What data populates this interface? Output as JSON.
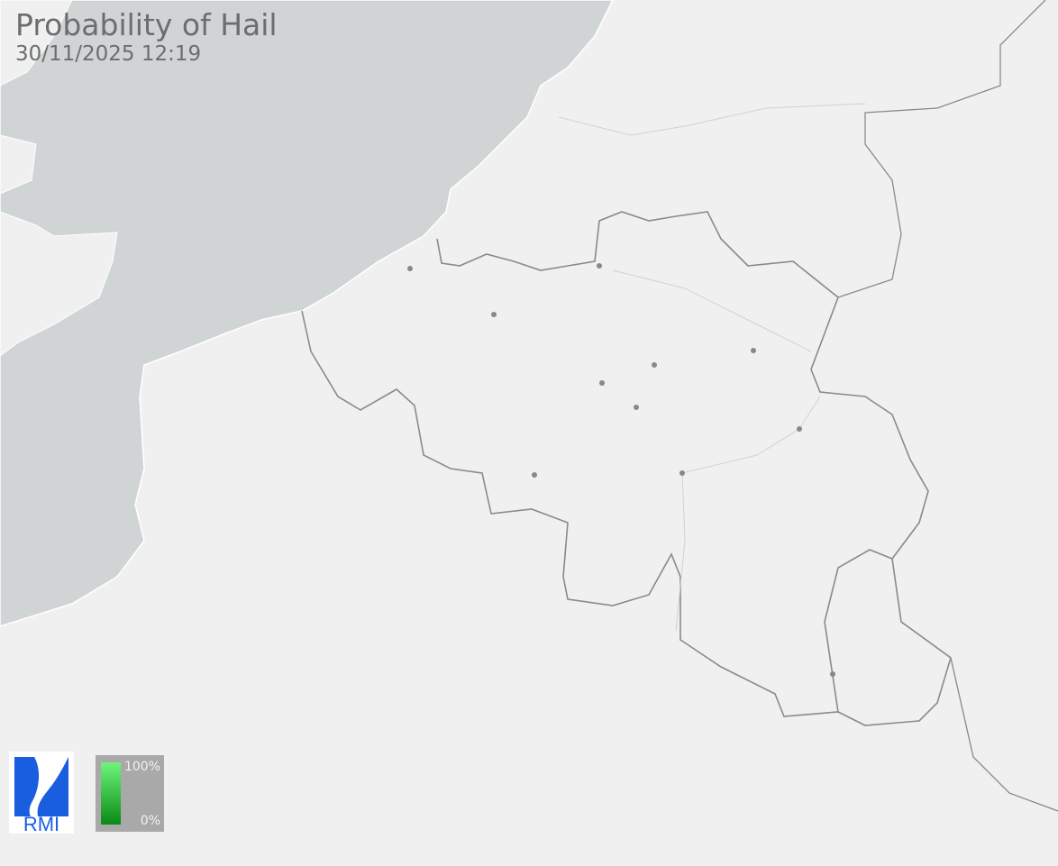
{
  "header": {
    "title": "Probability of Hail",
    "timestamp": "30/11/2025 12:19"
  },
  "logo": {
    "text": "RMI",
    "color": "#1a5ee0"
  },
  "legend": {
    "max_label": "100%",
    "min_label": "0%",
    "color_max": "#6ef57a",
    "color_min": "#0a8a16"
  },
  "colors": {
    "land": "#eff0ef",
    "sea": "#d1d4d5",
    "border": "#8a8a8a"
  },
  "cities": [
    {
      "name": "city"
    },
    {
      "name": "city"
    },
    {
      "name": "city"
    },
    {
      "name": "city"
    },
    {
      "name": "city"
    },
    {
      "name": "city"
    },
    {
      "name": "city"
    },
    {
      "name": "city"
    },
    {
      "name": "city"
    },
    {
      "name": "city"
    },
    {
      "name": "city"
    }
  ]
}
